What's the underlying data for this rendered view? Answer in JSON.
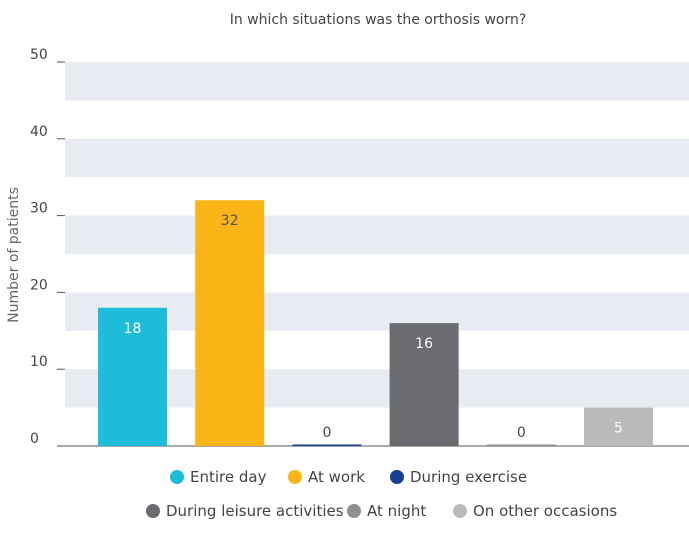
{
  "chart_data": {
    "type": "bar",
    "title": "In which situations was the orthosis worn?",
    "xlabel": "",
    "ylabel": "Number of patients",
    "ylim": [
      0,
      50
    ],
    "yticks": [
      0,
      10,
      20,
      30,
      40,
      50
    ],
    "grid": "alternating horizontal bands",
    "legend_position": "bottom",
    "categories": [
      "Entire day",
      "At work",
      "During exercise",
      "During leisure activities",
      "At night",
      "On other occasions"
    ],
    "values": [
      18,
      32,
      0,
      16,
      0,
      5
    ],
    "data_labels": [
      "18",
      "32",
      "0",
      "16",
      "0",
      "5"
    ],
    "colors": [
      "#1dbcd8",
      "#fbb516",
      "#173f95",
      "#6b6c6f",
      "#8e8f91",
      "#b9babc"
    ],
    "label_colors": [
      "#ffffff",
      "#555555",
      "#444444",
      "#ffffff",
      "#444444",
      "#ffffff"
    ],
    "band_color": "#e8ecf2"
  }
}
